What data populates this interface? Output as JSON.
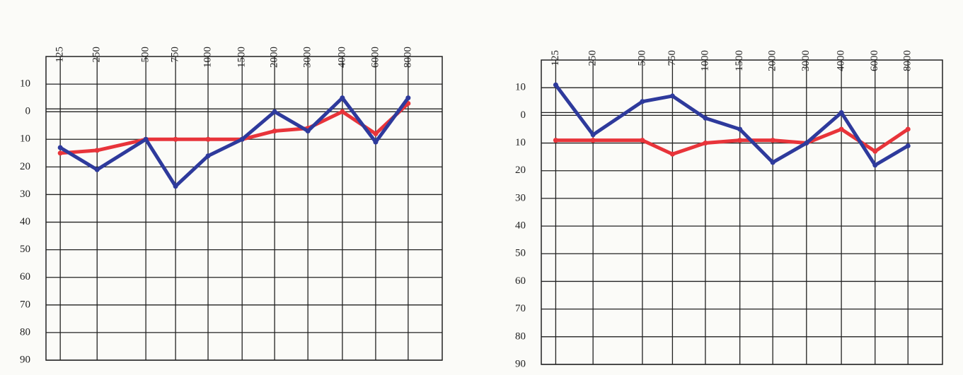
{
  "chart_data": [
    {
      "type": "line",
      "categories": [
        "125",
        "250",
        "500",
        "750",
        "1000",
        "1500",
        "2000",
        "3000",
        "4000",
        "6000",
        "8000"
      ],
      "series": [
        {
          "color": "#e8343a",
          "values": [
            15,
            14,
            10,
            10,
            10,
            10,
            7,
            6,
            0,
            8,
            -3
          ]
        },
        {
          "color": "#2e3a9c",
          "values": [
            13,
            21,
            10,
            27,
            16,
            10,
            0,
            7,
            -5,
            11,
            -5
          ]
        }
      ],
      "ylim": [
        -20,
        90
      ],
      "y_inverted": true,
      "yticks": [
        {
          "value": -10,
          "label": "10"
        },
        0,
        10,
        20,
        30,
        40,
        50,
        60,
        70,
        80,
        90
      ],
      "grid": true
    },
    {
      "type": "line",
      "categories": [
        "125",
        "250",
        "500",
        "750",
        "1000",
        "1500",
        "2000",
        "3000",
        "4000",
        "6000",
        "8000"
      ],
      "series": [
        {
          "color": "#e8343a",
          "values": [
            9,
            9,
            9,
            14,
            10,
            9,
            9,
            10,
            5,
            13,
            5
          ]
        },
        {
          "color": "#2e3a9c",
          "values": [
            -11,
            7,
            -5,
            -7,
            1,
            5,
            17,
            10,
            -1,
            18,
            11
          ]
        }
      ],
      "ylim": [
        -20,
        90
      ],
      "y_inverted": true,
      "yticks": [
        {
          "value": -10,
          "label": "10"
        },
        0,
        10,
        20,
        30,
        40,
        50,
        60,
        70,
        80,
        90
      ],
      "grid": true
    }
  ]
}
